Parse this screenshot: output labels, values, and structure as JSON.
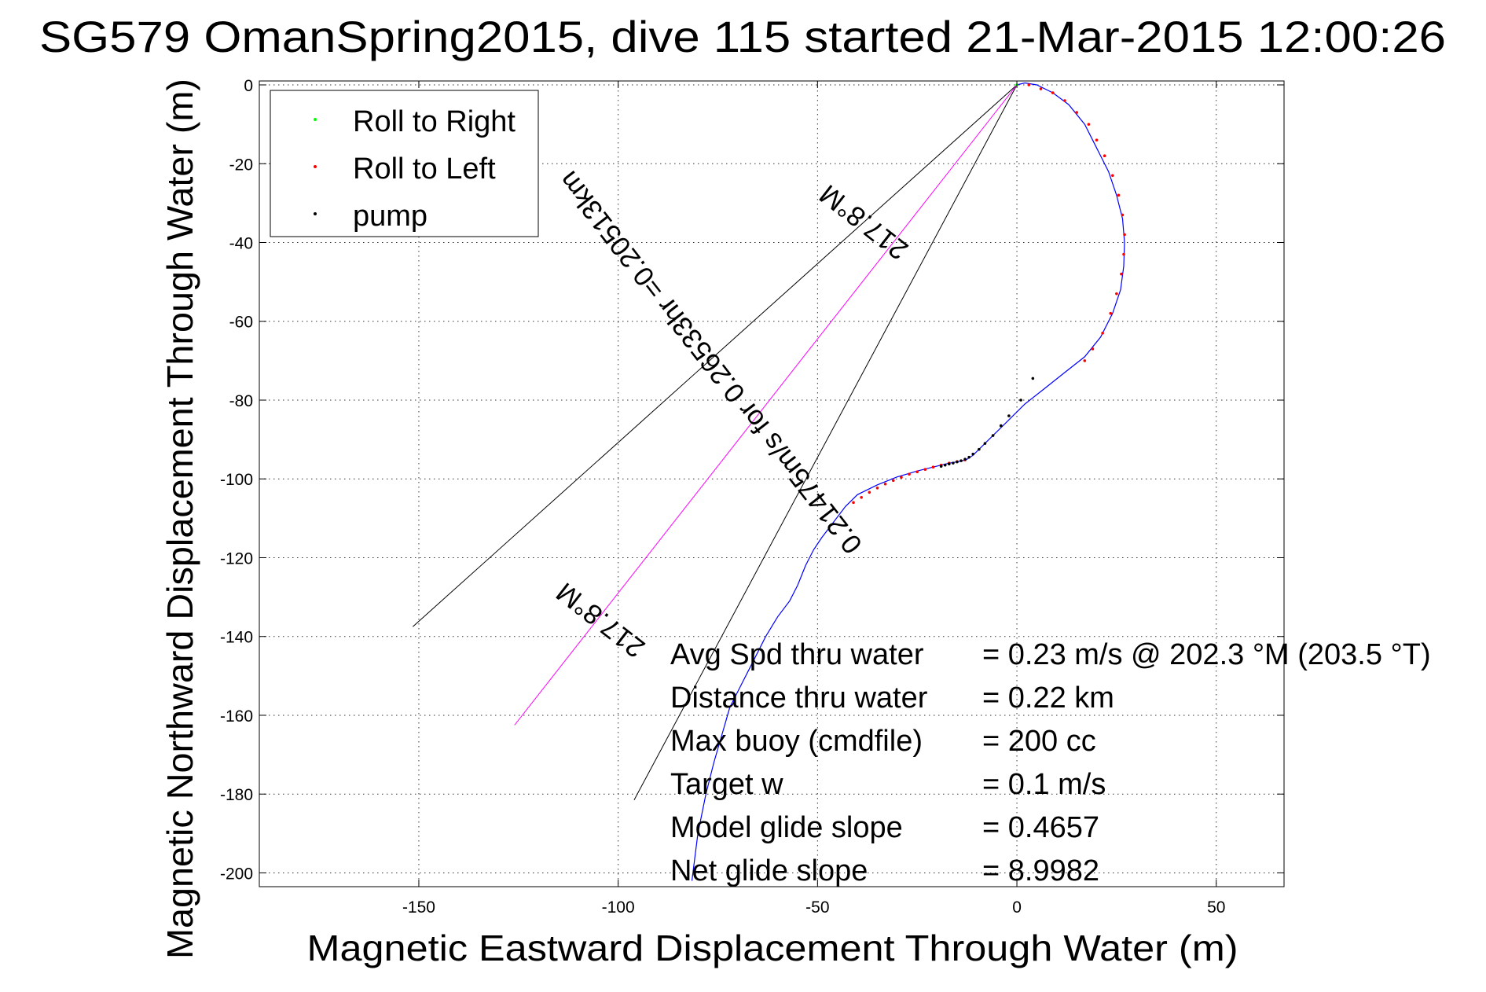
{
  "chart_data": {
    "type": "line",
    "title": "SG579 OmanSpring2015, dive 115 started 21-Mar-2015 12:00:26",
    "xlabel": "Magnetic Eastward Displacement Through Water (m)",
    "ylabel": "Magnetic Northward Displacement Through Water (m)",
    "xlim": [
      -190,
      67
    ],
    "ylim": [
      -203.5,
      1.0
    ],
    "xticks": [
      -150,
      -100,
      -50,
      0,
      50
    ],
    "yticks": [
      0,
      -20,
      -40,
      -60,
      -80,
      -100,
      -120,
      -140,
      -160,
      -180,
      -200
    ],
    "grid": true,
    "legend": {
      "placement": "top-left",
      "entries": [
        {
          "label": "Roll to Right",
          "color": "#00ff00"
        },
        {
          "label": "Roll to Left",
          "color": "#ff0000"
        },
        {
          "label": "pump",
          "color": "#000000"
        }
      ]
    },
    "track": {
      "color": "#0000ff",
      "x": [
        0,
        2,
        5,
        9,
        13,
        17,
        20,
        23,
        25,
        26.5,
        27,
        26.8,
        26,
        24,
        21,
        17,
        12,
        7,
        2,
        -2,
        -6,
        -9,
        -11,
        -12.5,
        -14,
        -17,
        -21,
        -25,
        -30,
        -35,
        -40,
        -43,
        -46,
        -49,
        -51,
        -53,
        -55,
        -57,
        -60,
        -63,
        -66,
        -69,
        -72,
        -74,
        -76,
        -78,
        -80,
        -81.5
      ],
      "y": [
        0,
        0.5,
        0,
        -2,
        -5,
        -10,
        -16,
        -22,
        -28,
        -34,
        -40,
        -46,
        -52,
        -58,
        -64,
        -69,
        -73,
        -77,
        -81,
        -85,
        -89,
        -92,
        -94,
        -95,
        -95.5,
        -96,
        -97,
        -98,
        -99.5,
        -101.5,
        -104,
        -107,
        -111,
        -115,
        -118,
        -122,
        -127,
        -131,
        -135,
        -140,
        -146,
        -152,
        -158,
        -165,
        -172,
        -180,
        -190,
        -202
      ]
    },
    "markers": {
      "roll_to_right": {
        "color": "#00ff00",
        "x": [
          0
        ],
        "y": [
          0
        ]
      },
      "roll_to_left": {
        "color": "#ff0000",
        "x": [
          3,
          6,
          9,
          12,
          15,
          18,
          20,
          22,
          24,
          25.5,
          26.5,
          27,
          26.8,
          26.2,
          25,
          23.5,
          21.5,
          19,
          17,
          -13,
          -15,
          -17,
          -19,
          -21,
          -23,
          -25,
          -27,
          -29,
          -31,
          -33,
          -35,
          -37,
          -39,
          -41
        ],
        "y": [
          0,
          -1,
          -2,
          -4,
          -7,
          -10,
          -14,
          -18,
          -23,
          -28,
          -33,
          -38,
          -43,
          -48,
          -53,
          -58,
          -63,
          -67,
          -70,
          -95.2,
          -95.6,
          -96,
          -96.5,
          -97,
          -97.6,
          -98.2,
          -98.8,
          -99.6,
          -100.4,
          -101.3,
          -102.3,
          -103.4,
          -104.7,
          -106
        ]
      },
      "pump": {
        "color": "#000000",
        "x": [
          4,
          1,
          -2,
          -4,
          -6,
          -8,
          -9.5,
          -11,
          -12,
          -13,
          -14,
          -15,
          -16,
          -17,
          -18,
          -19
        ],
        "y": [
          -74.5,
          -80,
          -84,
          -86.5,
          -89,
          -91,
          -92.5,
          -93.7,
          -94.5,
          -95,
          -95.4,
          -95.7,
          -96,
          -96.2,
          -96.5,
          -96.8
        ]
      }
    },
    "lines": [
      {
        "color": "#000000",
        "x": [
          0,
          -151.5
        ],
        "y": [
          0,
          -137.5
        ]
      },
      {
        "color": "#000000",
        "x": [
          0,
          -96
        ],
        "y": [
          0,
          -181.5
        ]
      },
      {
        "color": "#ff00ff",
        "x": [
          0,
          -126
        ],
        "y": [
          0,
          -162.5
        ]
      }
    ],
    "annotations": [
      {
        "text": "217.8°M",
        "x": -37,
        "y": -33,
        "angle_deg": 217.8
      },
      {
        "text": "0.21475m/s for 0.26533hr =0.20513km",
        "x": -75,
        "y": -69,
        "angle_deg": 232.2
      },
      {
        "text": "217.8°M",
        "x": -103,
        "y": -134,
        "angle_deg": 217.8
      }
    ],
    "stats": [
      {
        "label": "Avg Spd thru water",
        "value": "=  0.23 m/s @ 202.3 °M (203.5 °T)"
      },
      {
        "label": "Distance thru water",
        "value": "=  0.22 km"
      },
      {
        "label": "Max buoy (cmdfile)",
        "value": "= 200 cc"
      },
      {
        "label": "Target w",
        "value": "= 0.1 m/s"
      },
      {
        "label": "Model glide slope",
        "value": "= 0.4657"
      },
      {
        "label": "Net glide slope",
        "value": "= 8.9982"
      }
    ]
  }
}
